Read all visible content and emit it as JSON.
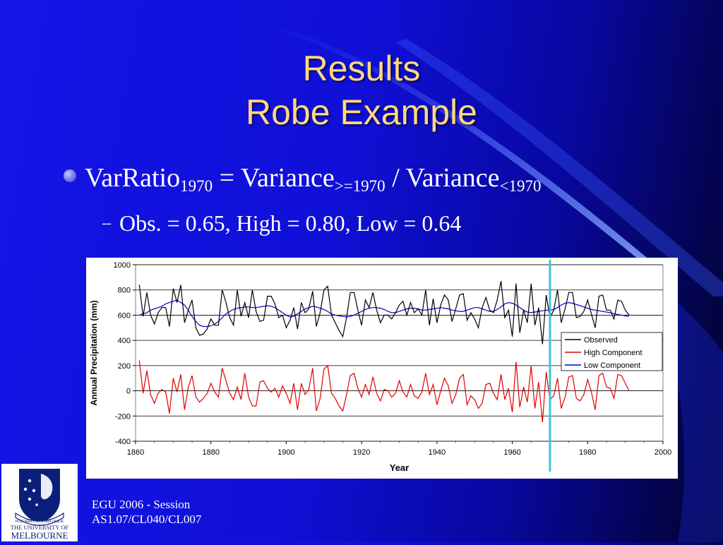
{
  "slide": {
    "title_line1": "Results",
    "title_line2": "Robe Example",
    "bullet": {
      "prefix": "VarRatio",
      "sub1": "1970",
      "mid": " = Variance",
      "sub2": ">=1970",
      "mid2": " / Variance",
      "sub3": "<1970"
    },
    "subbullet": {
      "dash": "–",
      "text": "Obs. = 0.65, High = 0.80, Low = 0.64"
    },
    "footer_line1": "EGU 2006 - Session",
    "footer_line2": "AS1.07/CL040/CL007",
    "logo": {
      "line1": "THE UNIVERSITY OF",
      "line2": "MELBOURNE",
      "motto": "POSTERA CRESCAM LAUDE"
    }
  },
  "colors": {
    "title": "#ffd880",
    "observed": "#000000",
    "high": "#e00000",
    "low": "#0000d0",
    "marker_line": "#38c8d8"
  },
  "chart_data": {
    "type": "line",
    "xlabel": "Year",
    "ylabel": "Annual Precipitation (mm)",
    "xlim": [
      1860,
      2000
    ],
    "ylim": [
      -400,
      1000
    ],
    "x_ticks": [
      1860,
      1880,
      1900,
      1920,
      1940,
      1960,
      1980,
      2000
    ],
    "y_ticks": [
      -400,
      -200,
      0,
      200,
      400,
      600,
      800,
      1000
    ],
    "vertical_marker_year": 1970,
    "legend_position": "right",
    "grid": "horizontal",
    "x_start": 1861,
    "series": [
      {
        "name": "Observed",
        "color": "#000000",
        "values": [
          840,
          590,
          780,
          600,
          530,
          620,
          660,
          660,
          510,
          810,
          700,
          840,
          540,
          640,
          720,
          500,
          440,
          450,
          490,
          570,
          520,
          520,
          800,
          700,
          580,
          520,
          800,
          590,
          700,
          580,
          800,
          630,
          550,
          560,
          750,
          750,
          690,
          580,
          600,
          500,
          560,
          660,
          490,
          700,
          620,
          650,
          790,
          510,
          620,
          800,
          830,
          600,
          540,
          480,
          430,
          580,
          780,
          780,
          640,
          520,
          720,
          660,
          780,
          640,
          540,
          600,
          600,
          570,
          620,
          680,
          710,
          600,
          700,
          620,
          650,
          600,
          800,
          520,
          730,
          540,
          680,
          760,
          720,
          550,
          650,
          760,
          770,
          560,
          620,
          570,
          500,
          660,
          740,
          640,
          620,
          720,
          870,
          580,
          640,
          430,
          850,
          460,
          640,
          540,
          850,
          520,
          660,
          370,
          760,
          580,
          640,
          800,
          540,
          650,
          780,
          780,
          580,
          590,
          630,
          720,
          610,
          500,
          750,
          760,
          640,
          640,
          570,
          720,
          710,
          640,
          600
        ]
      },
      {
        "name": "High Component",
        "color": "#e00000",
        "values": [
          240,
          -20,
          160,
          -30,
          -100,
          -20,
          10,
          -10,
          -180,
          100,
          -10,
          130,
          -150,
          30,
          120,
          -50,
          -90,
          -60,
          -20,
          60,
          -10,
          -50,
          180,
          80,
          -20,
          -70,
          30,
          -70,
          140,
          -50,
          -120,
          -120,
          70,
          80,
          20,
          -10,
          20,
          -50,
          40,
          -20,
          -100,
          60,
          -150,
          60,
          -30,
          10,
          180,
          -160,
          -60,
          170,
          200,
          -20,
          -60,
          -120,
          -160,
          -30,
          120,
          140,
          20,
          -50,
          50,
          -30,
          110,
          -20,
          -80,
          10,
          0,
          -50,
          -20,
          80,
          -10,
          -50,
          50,
          -40,
          -60,
          -10,
          140,
          -30,
          50,
          -110,
          0,
          100,
          40,
          -100,
          -30,
          100,
          130,
          -110,
          -40,
          -70,
          -140,
          -100,
          50,
          60,
          -20,
          -70,
          130,
          -70,
          20,
          -170,
          230,
          -130,
          30,
          -90,
          200,
          -140,
          70,
          -250,
          150,
          -70,
          -40,
          100,
          -140,
          -50,
          110,
          120,
          -60,
          -80,
          -30,
          90,
          -10,
          -150,
          120,
          140,
          30,
          20,
          -60,
          130,
          120,
          60,
          0
        ]
      },
      {
        "name": "Low Component",
        "color": "#0000d0",
        "values": [
          600,
          610,
          620,
          640,
          650,
          660,
          670,
          690,
          700,
          710,
          720,
          700,
          680,
          640,
          590,
          550,
          520,
          510,
          510,
          515,
          530,
          550,
          580,
          610,
          630,
          645,
          655,
          660,
          665,
          665,
          660,
          660,
          665,
          670,
          675,
          670,
          660,
          640,
          620,
          600,
          585,
          590,
          610,
          630,
          650,
          660,
          670,
          665,
          655,
          645,
          630,
          610,
          600,
          595,
          590,
          585,
          590,
          600,
          615,
          630,
          645,
          655,
          660,
          660,
          655,
          645,
          630,
          620,
          620,
          630,
          640,
          650,
          655,
          655,
          650,
          640,
          640,
          645,
          650,
          655,
          660,
          655,
          650,
          640,
          635,
          630,
          630,
          640,
          650,
          660,
          660,
          650,
          640,
          630,
          630,
          645,
          665,
          690,
          700,
          695,
          680,
          660,
          640,
          625,
          620,
          625,
          630,
          635,
          640,
          640,
          645,
          660,
          680,
          695,
          700,
          695,
          685,
          675,
          665,
          655,
          645,
          640,
          635,
          630,
          625,
          620,
          612,
          605,
          600,
          595,
          590
        ]
      }
    ]
  }
}
